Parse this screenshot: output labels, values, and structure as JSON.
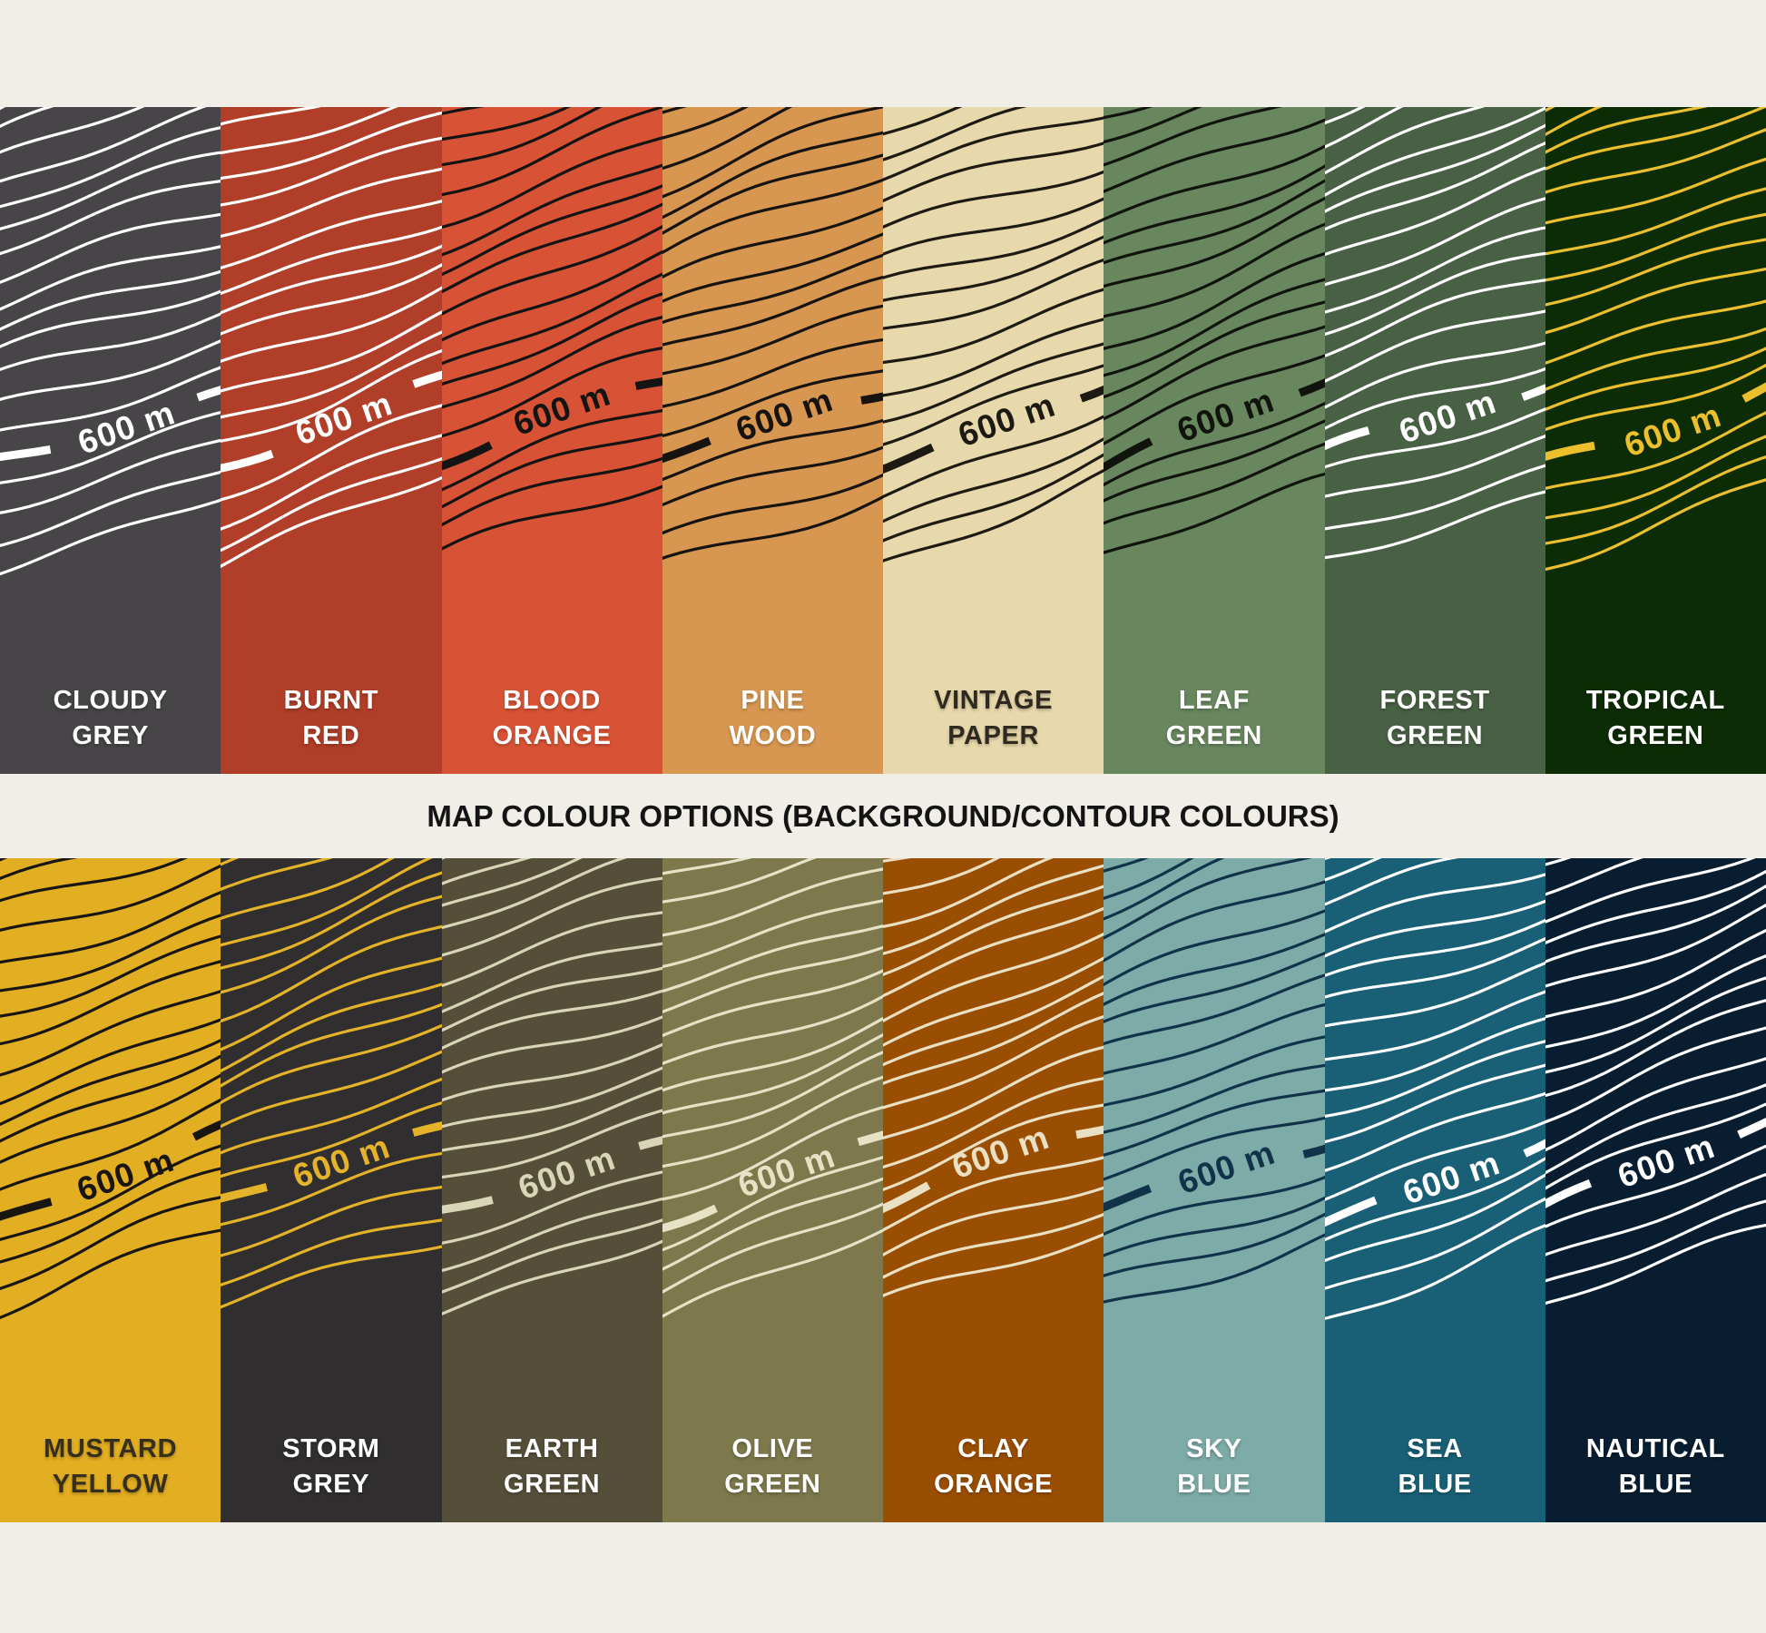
{
  "page": {
    "background": "#f1eee7"
  },
  "title": {
    "text": "MAP COLOUR OPTIONS (BACKGROUND/CONTOUR COLOURS)",
    "color": "#141414"
  },
  "contour_label": "600 m",
  "rows": [
    {
      "name": "top",
      "tiles": [
        {
          "id": "cloudy-grey",
          "name": "CLOUDY\nGREY",
          "bg": "#474547",
          "contour": "#ffffff",
          "label_color": "#ffffff"
        },
        {
          "id": "burnt-red",
          "name": "BURNT\nRED",
          "bg": "#b03e28",
          "contour": "#ffffff",
          "label_color": "#ffffff"
        },
        {
          "id": "blood-orange",
          "name": "BLOOD\nORANGE",
          "bg": "#d85335",
          "contour": "#141414",
          "label_color": "#ffffff"
        },
        {
          "id": "pine-wood",
          "name": "PINE\nWOOD",
          "bg": "#d79750",
          "contour": "#161310",
          "label_color": "#ffffff"
        },
        {
          "id": "vintage-paper",
          "name": "VINTAGE\nPAPER",
          "bg": "#e8d9ac",
          "contour": "#1d1a14",
          "label_color": "#2e2a20"
        },
        {
          "id": "leaf-green",
          "name": "LEAF\nGREEN",
          "bg": "#68875e",
          "contour": "#10140d",
          "label_color": "#ffffff"
        },
        {
          "id": "forest-green",
          "name": "FOREST\nGREEN",
          "bg": "#486043",
          "contour": "#ffffff",
          "label_color": "#ffffff"
        },
        {
          "id": "tropical-green",
          "name": "TROPICAL\nGREEN",
          "bg": "#0c2c05",
          "contour": "#ecbf2d",
          "label_color": "#ffffff"
        }
      ]
    },
    {
      "name": "bottom",
      "tiles": [
        {
          "id": "mustard-yellow",
          "name": "MUSTARD\nYELLOW",
          "bg": "#e2ae22",
          "contour": "#191611",
          "label_color": "#362f1d"
        },
        {
          "id": "storm-grey",
          "name": "STORM\nGREY",
          "bg": "#302e2f",
          "contour": "#e5b32a",
          "label_color": "#ffffff"
        },
        {
          "id": "earth-green",
          "name": "EARTH\nGREEN",
          "bg": "#554f39",
          "contour": "#d9d5b7",
          "label_color": "#ffffff"
        },
        {
          "id": "olive-green",
          "name": "OLIVE\nGREEN",
          "bg": "#7d794c",
          "contour": "#e6e2c5",
          "label_color": "#ffffff"
        },
        {
          "id": "clay-orange",
          "name": "CLAY\nORANGE",
          "bg": "#9a4e02",
          "contour": "#eae1c4",
          "label_color": "#ffffff"
        },
        {
          "id": "sky-blue",
          "name": "SKY\nBLUE",
          "bg": "#7daba7",
          "contour": "#113349",
          "label_color": "#ffffff"
        },
        {
          "id": "sea-blue",
          "name": "SEA\nBLUE",
          "bg": "#196076",
          "contour": "#ffffff",
          "label_color": "#ffffff"
        },
        {
          "id": "nautical-blue",
          "name": "NAUTICAL\nBLUE",
          "bg": "#081e30",
          "contour": "#ffffff",
          "label_color": "#ffffff"
        }
      ]
    }
  ]
}
